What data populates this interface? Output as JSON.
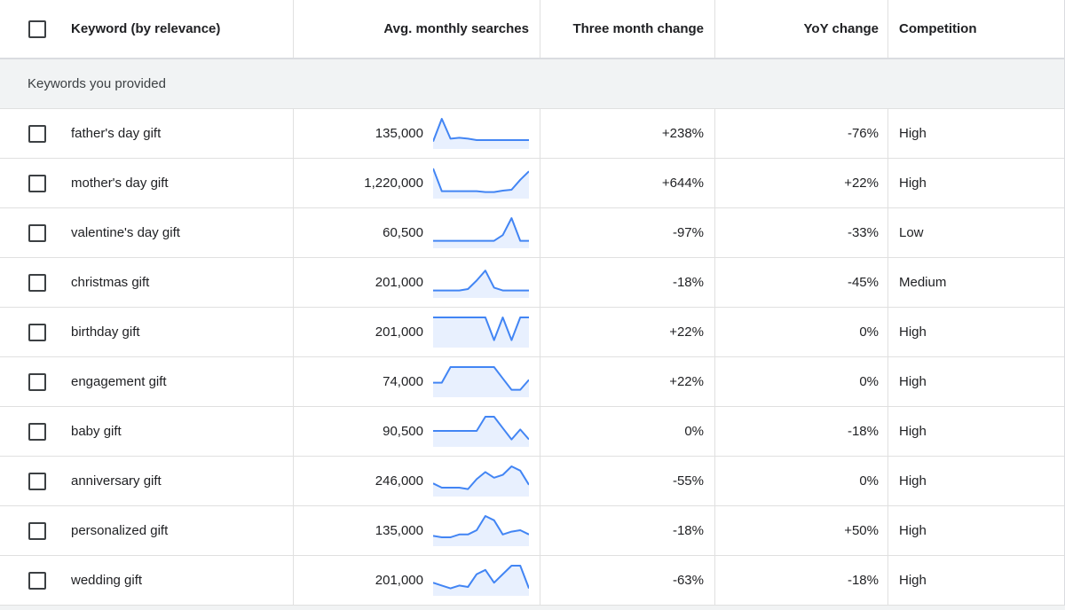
{
  "header": {
    "keyword": "Keyword (by relevance)",
    "avg": "Avg. monthly searches",
    "three": "Three month change",
    "yoy": "YoY change",
    "competition": "Competition"
  },
  "group_label": "Keywords you provided",
  "colors": {
    "spark_line": "#4285f4",
    "spark_fill": "#e8f0fe"
  },
  "rows": [
    {
      "keyword": "father's day gift",
      "avg": "135,000",
      "three": "+238%",
      "yoy": "-76%",
      "competition": "High",
      "trend": [
        2,
        10,
        3,
        3.3,
        3,
        2.5,
        2.5,
        2.5,
        2.5,
        2.5,
        2.5,
        2.5
      ]
    },
    {
      "keyword": "mother's day gift",
      "avg": "1,220,000",
      "three": "+644%",
      "yoy": "+22%",
      "competition": "High",
      "trend": [
        10,
        2,
        2,
        2,
        2,
        2,
        1.7,
        1.7,
        2.2,
        2.5,
        6,
        9
      ]
    },
    {
      "keyword": "valentine's day gift",
      "avg": "60,500",
      "three": "-97%",
      "yoy": "-33%",
      "competition": "Low",
      "trend": [
        2,
        2,
        2,
        2,
        2,
        2,
        2,
        2,
        4,
        10,
        2,
        2
      ]
    },
    {
      "keyword": "christmas gift",
      "avg": "201,000",
      "three": "-18%",
      "yoy": "-45%",
      "competition": "Medium",
      "trend": [
        2,
        2,
        2,
        2,
        2.5,
        5.5,
        9,
        3,
        2,
        2,
        2,
        2
      ]
    },
    {
      "keyword": "birthday gift",
      "avg": "201,000",
      "three": "+22%",
      "yoy": "0%",
      "competition": "High",
      "trend": [
        10,
        10,
        10,
        10,
        10,
        10,
        10,
        2,
        10,
        2,
        10,
        10
      ]
    },
    {
      "keyword": "engagement gift",
      "avg": "74,000",
      "three": "+22%",
      "yoy": "0%",
      "competition": "High",
      "trend": [
        4.5,
        4.5,
        10,
        10,
        10,
        10,
        10,
        10,
        6,
        2,
        2,
        5.5
      ]
    },
    {
      "keyword": "baby gift",
      "avg": "90,500",
      "three": "0%",
      "yoy": "-18%",
      "competition": "High",
      "trend": [
        5,
        5,
        5,
        5,
        5,
        5,
        10,
        10,
        6,
        2,
        5.5,
        2
      ]
    },
    {
      "keyword": "anniversary gift",
      "avg": "246,000",
      "three": "-55%",
      "yoy": "0%",
      "competition": "High",
      "trend": [
        4,
        2.5,
        2.5,
        2.5,
        2,
        5.5,
        8,
        6,
        7,
        10,
        8.5,
        3.5
      ]
    },
    {
      "keyword": "personalized gift",
      "avg": "135,000",
      "three": "-18%",
      "yoy": "+50%",
      "competition": "High",
      "trend": [
        3,
        2.5,
        2.5,
        3.5,
        3.5,
        5,
        10,
        8.5,
        3.5,
        4.5,
        5,
        3.5
      ]
    },
    {
      "keyword": "wedding gift",
      "avg": "201,000",
      "three": "-63%",
      "yoy": "-18%",
      "competition": "High",
      "trend": [
        4,
        3,
        2,
        3,
        2.5,
        7,
        8.5,
        4,
        7,
        10,
        10,
        2
      ]
    }
  ]
}
